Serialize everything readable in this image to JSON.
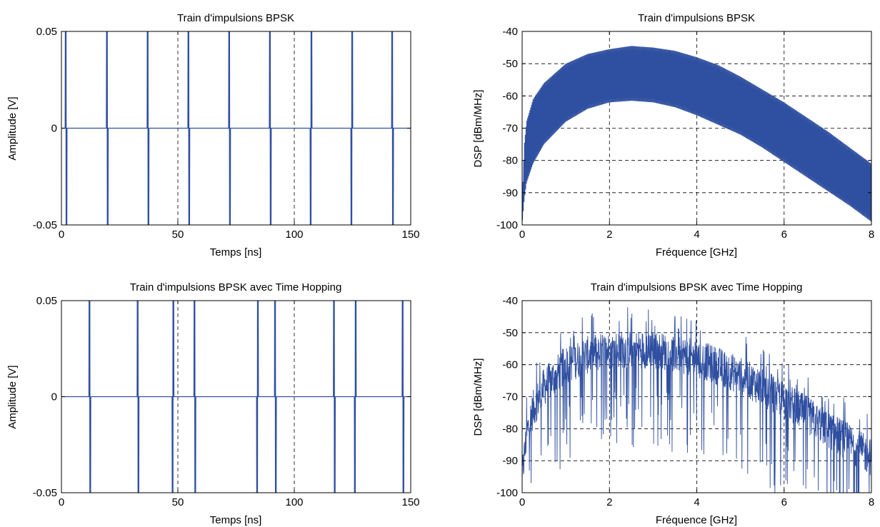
{
  "figure": {
    "line_color": "#2f4fa0",
    "grid_color": "#000000",
    "background": "#ffffff"
  },
  "chart_data": [
    {
      "id": "time-bpsk",
      "type": "line",
      "title": "Train d'impulsions BPSK",
      "xlabel": "Temps [ns]",
      "ylabel": "Amplitude [V]",
      "xlim": [
        0,
        150
      ],
      "ylim": [
        -0.05,
        0.05
      ],
      "xticks": [
        0,
        50,
        100,
        150
      ],
      "xtick_labels": [
        "0",
        "50",
        "100",
        "150"
      ],
      "yticks": [
        -0.05,
        0,
        0.05
      ],
      "ytick_labels": [
        "-0.05",
        "0",
        "0.05"
      ],
      "grid": true,
      "series": [
        {
          "kind": "pulse_train",
          "pulses": [
            {
              "t": 2.0,
              "sign": 1
            },
            {
              "t": 19.7,
              "sign": 1
            },
            {
              "t": 37.2,
              "sign": 1
            },
            {
              "t": 54.7,
              "sign": 1
            },
            {
              "t": 72.2,
              "sign": 1
            },
            {
              "t": 89.7,
              "sign": 1
            },
            {
              "t": 107.2,
              "sign": -1
            },
            {
              "t": 124.7,
              "sign": -1
            },
            {
              "t": 142.2,
              "sign": 1
            }
          ]
        }
      ]
    },
    {
      "id": "psd-bpsk",
      "type": "line",
      "title": "Train d'impulsions BPSK",
      "xlabel": "Fréquence [GHz]",
      "ylabel": "DSP [dBm/MHz]",
      "xlim": [
        0,
        8
      ],
      "ylim": [
        -100,
        -40
      ],
      "xticks": [
        0,
        2,
        4,
        6,
        8
      ],
      "xtick_labels": [
        "0",
        "2",
        "4",
        "6",
        "8"
      ],
      "yticks": [
        -100,
        -90,
        -80,
        -70,
        -60,
        -50,
        -40
      ],
      "ytick_labels": [
        "-100",
        "-90",
        "-80",
        "-70",
        "-60",
        "-50",
        "-40"
      ],
      "grid": true,
      "series": [
        {
          "kind": "spectrum_band",
          "upper_envelope": {
            "x": [
              0,
              0.05,
              0.1,
              0.25,
              0.5,
              1,
              1.5,
              2,
              2.5,
              3,
              3.5,
              4,
              4.5,
              5,
              5.5,
              6,
              6.5,
              7,
              7.5,
              8
            ],
            "y": [
              -93,
              -75,
              -68,
              -61,
              -56,
              -50,
              -47,
              -45.5,
              -44.5,
              -45,
              -46,
              -48,
              -50.5,
              -54,
              -58,
              -62,
              -66.5,
              -71,
              -76,
              -81
            ]
          },
          "lower_envelope": {
            "x": [
              0,
              0.05,
              0.1,
              0.25,
              0.5,
              1,
              1.5,
              2,
              2.5,
              3,
              3.5,
              4,
              4.5,
              5,
              5.5,
              6,
              6.5,
              7,
              7.5,
              8
            ],
            "y": [
              -100,
              -92,
              -87,
              -81,
              -75,
              -68,
              -64,
              -62,
              -61.5,
              -62,
              -63.5,
              -66,
              -69,
              -72,
              -76,
              -80.5,
              -85,
              -89.5,
              -94,
              -99
            ]
          }
        }
      ]
    },
    {
      "id": "time-bpsk-th",
      "type": "line",
      "title": "Train d'impulsions BPSK avec Time Hopping",
      "xlabel": "Temps [ns]",
      "ylabel": "Amplitude [V]",
      "xlim": [
        0,
        150
      ],
      "ylim": [
        -0.05,
        0.05
      ],
      "xticks": [
        0,
        50,
        100,
        150
      ],
      "xtick_labels": [
        "0",
        "50",
        "100",
        "150"
      ],
      "yticks": [
        -0.05,
        0,
        0.05
      ],
      "ytick_labels": [
        "-0.05",
        "0",
        "0.05"
      ],
      "grid": true,
      "series": [
        {
          "kind": "pulse_train",
          "pulses": [
            {
              "t": 12.2,
              "sign": 1
            },
            {
              "t": 32.9,
              "sign": 1
            },
            {
              "t": 47.9,
              "sign": -1
            },
            {
              "t": 57.3,
              "sign": 1
            },
            {
              "t": 84.2,
              "sign": -1
            },
            {
              "t": 91.9,
              "sign": 1
            },
            {
              "t": 117.2,
              "sign": 1
            },
            {
              "t": 126.2,
              "sign": -1
            },
            {
              "t": 146.7,
              "sign": 1
            }
          ]
        }
      ]
    },
    {
      "id": "psd-bpsk-th",
      "type": "line",
      "title": "Train d'impulsions BPSK avec Time Hopping",
      "xlabel": "Fréquence [GHz]",
      "ylabel": "DSP [dBm/MHz]",
      "xlim": [
        0,
        8
      ],
      "ylim": [
        -100,
        -40
      ],
      "xticks": [
        0,
        2,
        4,
        6,
        8
      ],
      "xtick_labels": [
        "0",
        "2",
        "4",
        "6",
        "8"
      ],
      "yticks": [
        -100,
        -90,
        -80,
        -70,
        -60,
        -50,
        -40
      ],
      "ytick_labels": [
        "-100",
        "-90",
        "-80",
        "-70",
        "-60",
        "-50",
        "-40"
      ],
      "grid": true,
      "series": [
        {
          "kind": "noisy_spectrum",
          "mean_curve": {
            "x": [
              0,
              0.1,
              0.25,
              0.5,
              1,
              1.5,
              2,
              2.5,
              3,
              3.5,
              4,
              4.5,
              5,
              5.5,
              6,
              6.5,
              7,
              7.5,
              8
            ],
            "y": [
              -95,
              -82,
              -74,
              -67,
              -60,
              -57,
              -55.5,
              -55,
              -55.5,
              -56.5,
              -58,
              -60.5,
              -63.5,
              -67,
              -71,
              -75.5,
              -80,
              -84.5,
              -89
            ]
          },
          "spread_db": 12
        }
      ]
    }
  ]
}
